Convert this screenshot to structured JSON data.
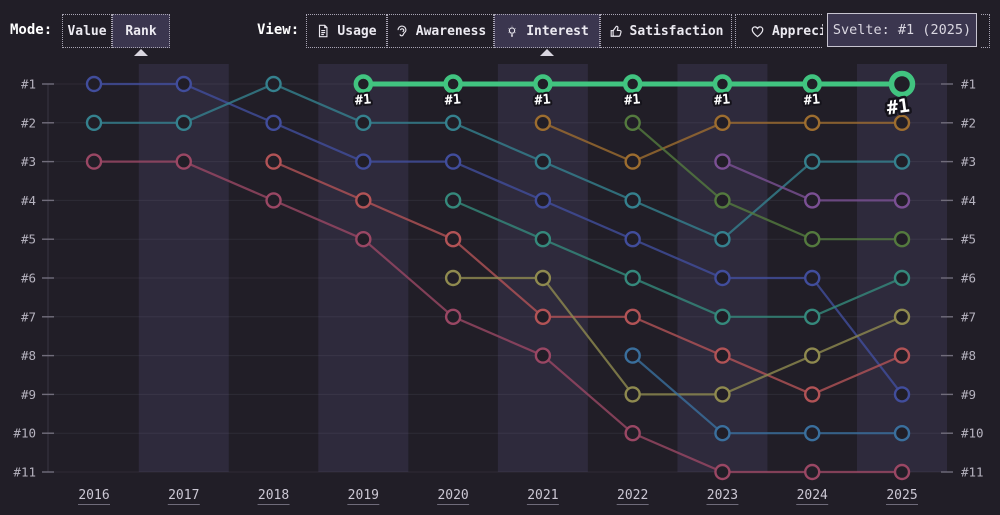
{
  "toolbar": {
    "mode_label": "Mode:",
    "modes": [
      {
        "label": "Value",
        "selected": false
      },
      {
        "label": "Rank",
        "selected": true
      }
    ],
    "view_label": "View:",
    "views": [
      {
        "label": "Usage",
        "icon": "document-icon",
        "selected": false
      },
      {
        "label": "Awareness",
        "icon": "ear-icon",
        "selected": false
      },
      {
        "label": "Interest",
        "icon": "lightbulb-icon",
        "selected": true
      },
      {
        "label": "Satisfaction",
        "icon": "thumbs-up-icon",
        "selected": false
      },
      {
        "label": "Appreciation",
        "icon": "heart-icon",
        "selected": false
      }
    ]
  },
  "tooltip": {
    "text": "Svelte: #1 (2025)"
  },
  "theme": {
    "background": "#211e27",
    "stripe": "#2e2a3c",
    "grid_line": "#8d89a0",
    "tick": "#716d7b",
    "axis_line": "#4a4656",
    "axis_label": "#b6b3bf",
    "year_label": "#cbc7d3",
    "year_underline": "#6f6b7a",
    "highlight": "#41c480",
    "point_label_fill": "#ffffff",
    "point_label_outline": "#15131b"
  },
  "chart_data": {
    "type": "line",
    "subtype": "bump-rank",
    "title": "",
    "xlabel": "",
    "ylabel": "",
    "x_years": [
      2016,
      2017,
      2018,
      2019,
      2020,
      2021,
      2022,
      2023,
      2024,
      2025
    ],
    "striped_years": [
      2017,
      2019,
      2021,
      2023,
      2025
    ],
    "rank_labels": [
      "#1",
      "#2",
      "#3",
      "#4",
      "#5",
      "#6",
      "#7",
      "#8",
      "#9",
      "#10",
      "#11"
    ],
    "rank_range": [
      1,
      11
    ],
    "legend": "none",
    "grid": "horizontal",
    "series": [
      {
        "name": "line-indigo",
        "color": "#414d9c",
        "points": [
          [
            2016,
            1
          ],
          [
            2017,
            1
          ],
          [
            2018,
            2
          ],
          [
            2019,
            3
          ],
          [
            2020,
            3
          ],
          [
            2021,
            4
          ],
          [
            2022,
            5
          ],
          [
            2023,
            6
          ],
          [
            2024,
            6
          ],
          [
            2025,
            9
          ]
        ]
      },
      {
        "name": "line-teal",
        "color": "#35818e",
        "points": [
          [
            2016,
            2
          ],
          [
            2017,
            2
          ],
          [
            2018,
            1
          ],
          [
            2019,
            2
          ],
          [
            2020,
            2
          ],
          [
            2021,
            3
          ],
          [
            2022,
            4
          ],
          [
            2023,
            5
          ],
          [
            2024,
            3
          ],
          [
            2025,
            3
          ]
        ]
      },
      {
        "name": "line-wine",
        "color": "#9a4764",
        "points": [
          [
            2016,
            3
          ],
          [
            2017,
            3
          ],
          [
            2018,
            4
          ],
          [
            2019,
            5
          ],
          [
            2020,
            7
          ],
          [
            2021,
            8
          ],
          [
            2022,
            10
          ],
          [
            2023,
            11
          ],
          [
            2024,
            11
          ],
          [
            2025,
            11
          ]
        ]
      },
      {
        "name": "line-red",
        "color": "#b25356",
        "points": [
          [
            2018,
            3
          ],
          [
            2019,
            4
          ],
          [
            2020,
            5
          ],
          [
            2021,
            7
          ],
          [
            2022,
            7
          ],
          [
            2023,
            8
          ],
          [
            2024,
            9
          ],
          [
            2025,
            8
          ]
        ]
      },
      {
        "name": "line-seagreen",
        "color": "#35897c",
        "points": [
          [
            2020,
            4
          ],
          [
            2021,
            5
          ],
          [
            2022,
            6
          ],
          [
            2023,
            7
          ],
          [
            2024,
            7
          ],
          [
            2025,
            6
          ]
        ]
      },
      {
        "name": "line-olive",
        "color": "#8f8a4f",
        "points": [
          [
            2020,
            6
          ],
          [
            2021,
            6
          ],
          [
            2022,
            9
          ],
          [
            2023,
            9
          ],
          [
            2024,
            8
          ],
          [
            2025,
            7
          ]
        ]
      },
      {
        "name": "line-orange",
        "color": "#9d6d2f",
        "points": [
          [
            2021,
            2
          ],
          [
            2022,
            3
          ],
          [
            2023,
            2
          ],
          [
            2024,
            2
          ],
          [
            2025,
            2
          ]
        ]
      },
      {
        "name": "line-darkgreen",
        "color": "#547a3e",
        "points": [
          [
            2022,
            2
          ],
          [
            2023,
            4
          ],
          [
            2024,
            5
          ],
          [
            2025,
            5
          ]
        ]
      },
      {
        "name": "line-blue",
        "color": "#3a6f9d",
        "points": [
          [
            2022,
            8
          ],
          [
            2023,
            10
          ],
          [
            2024,
            10
          ],
          [
            2025,
            10
          ]
        ]
      },
      {
        "name": "line-purple",
        "color": "#7b5094",
        "points": [
          [
            2023,
            3
          ],
          [
            2024,
            4
          ],
          [
            2025,
            4
          ]
        ]
      },
      {
        "name": "svelte",
        "color": "#41c480",
        "highlight": true,
        "point_label": "#1",
        "points": [
          [
            2019,
            1
          ],
          [
            2020,
            1
          ],
          [
            2021,
            1
          ],
          [
            2022,
            1
          ],
          [
            2023,
            1
          ],
          [
            2024,
            1
          ],
          [
            2025,
            1
          ]
        ]
      }
    ]
  }
}
